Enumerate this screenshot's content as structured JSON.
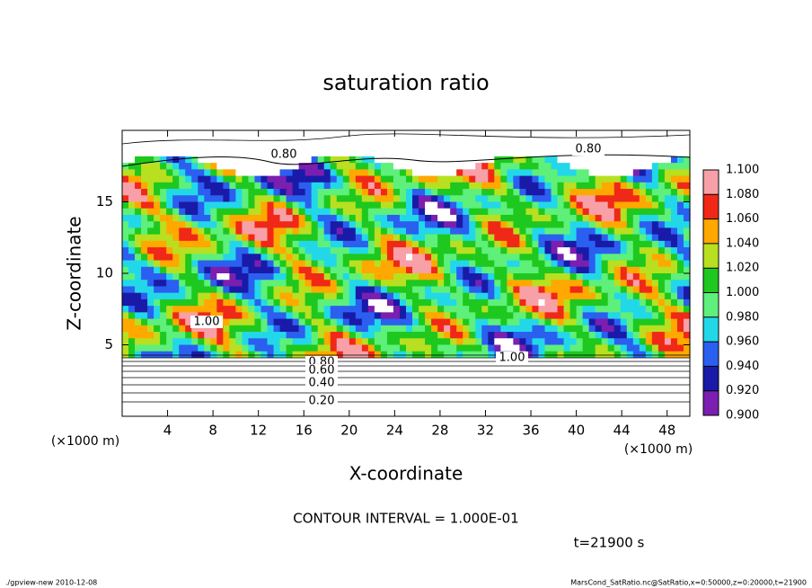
{
  "chart_data": {
    "type": "contour",
    "title": "saturation ratio",
    "x_label": "X-coordinate",
    "y_label": "Z-coordinate",
    "x_units": "(×1000 m)",
    "xlim": [
      0,
      50
    ],
    "xticks": [
      4,
      8,
      12,
      16,
      20,
      24,
      28,
      32,
      36,
      40,
      44,
      48
    ],
    "ylim": [
      0,
      20
    ],
    "yticks": [
      5,
      10,
      15
    ],
    "colorbar": {
      "ticks": [
        {
          "value": 0.9,
          "label": "0.900"
        },
        {
          "value": 0.92,
          "label": "0.920"
        },
        {
          "value": 0.94,
          "label": "0.940"
        },
        {
          "value": 0.96,
          "label": "0.960"
        },
        {
          "value": 0.98,
          "label": "0.980"
        },
        {
          "value": 1.0,
          "label": "1.000"
        },
        {
          "value": 1.02,
          "label": "1.020"
        },
        {
          "value": 1.04,
          "label": "1.040"
        },
        {
          "value": 1.06,
          "label": "1.060"
        },
        {
          "value": 1.08,
          "label": "1.080"
        },
        {
          "value": 1.1,
          "label": "1.100"
        }
      ],
      "colors": [
        "#7a1fb0",
        "#1a1aa8",
        "#2b5ff0",
        "#22d8e8",
        "#5ef07a",
        "#1ec81e",
        "#b8e020",
        "#ffa800",
        "#f02818",
        "#f8a0a8"
      ]
    },
    "contour_labels": [
      "0.80",
      "0.80",
      "1.00",
      "1.00",
      "0.80",
      "0.60",
      "0.40",
      "0.20"
    ],
    "contour_interval": "CONTOUR INTERVAL = 1.000E-01",
    "time_label": "t=21900 s",
    "footer_left": "./gpview-new   2010-12-08",
    "footer_right": "MarsCond_SatRatio.nc@SatRatio,x=0:50000,z=0:20000,t=21900"
  }
}
